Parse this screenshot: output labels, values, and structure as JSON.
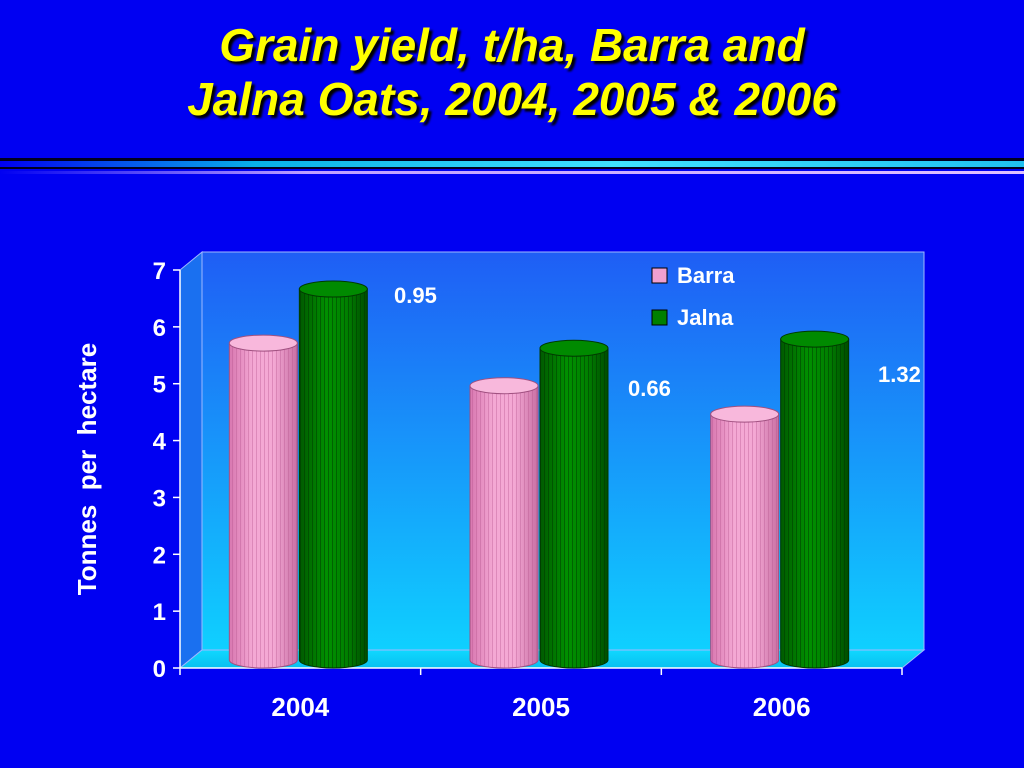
{
  "slide": {
    "title_line1": "Grain yield, t/ha, Barra and",
    "title_line2": "Jalna Oats, 2004, 2005 & 2006",
    "title_color": "#ffff00",
    "background_color": "#0000f2"
  },
  "chart_data": {
    "type": "bar",
    "style": "3d-cylinder",
    "categories": [
      "2004",
      "2005",
      "2006"
    ],
    "series": [
      {
        "name": "Barra",
        "values": [
          5.75,
          5.0,
          4.5
        ],
        "color": "#f0a0d0"
      },
      {
        "name": "Jalna",
        "values": [
          6.7,
          5.66,
          5.82
        ],
        "color": "#008000"
      }
    ],
    "annotations": [
      {
        "category": "2004",
        "text": "0.95"
      },
      {
        "category": "2005",
        "text": "0.66"
      },
      {
        "category": "2006",
        "text": "1.32"
      }
    ],
    "title": "",
    "xlabel": "",
    "ylabel": "Tonnes  per  hectare",
    "ylim": [
      0,
      7
    ],
    "yticks": [
      "0",
      "1",
      "2",
      "3",
      "4",
      "5",
      "6",
      "7"
    ],
    "grid": false,
    "legend": "top-right",
    "plot_gradient": [
      "#1f5ef5",
      "#0fd0ff"
    ]
  }
}
